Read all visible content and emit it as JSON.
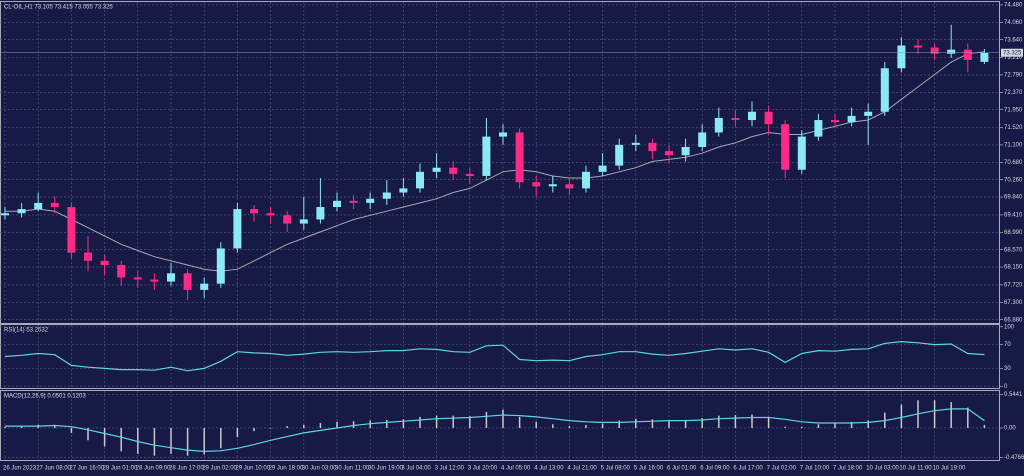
{
  "chart_data": [
    {
      "type": "candlestick",
      "title": "CL-OIL,H1 73.105 73.415 73.055 73.325",
      "categories": [
        "26 Jun 2023",
        null,
        "27 Jun 08:00",
        null,
        "27 Jun 16:00",
        null,
        "28 Jun 01:00",
        null,
        "28 Jun 09:00",
        null,
        "28 Jun 17:00",
        null,
        "29 Jun 02:00",
        null,
        "29 Jun 10:00",
        null,
        "29 Jun 18:00",
        null,
        "30 Jun 03:00",
        null,
        "30 Jun 11:00",
        null,
        "30 Jun 19:00",
        null,
        "3 Jul 04:00",
        null,
        "3 Jul 12:00",
        null,
        "3 Jul 20:00",
        null,
        "4 Jul 05:00",
        null,
        "4 Jul 13:00",
        null,
        "4 Jul 21:00",
        null,
        "5 Jul 08:00",
        null,
        "5 Jul 16:00",
        null,
        "6 Jul 01:00",
        null,
        "6 Jul 09:00",
        null,
        "6 Jul 17:00",
        null,
        "7 Jul 02:00",
        null,
        "7 Jul 10:00",
        null,
        "7 Jul 18:00",
        null,
        "10 Jul 03:00",
        null,
        "10 Jul 11:00",
        null,
        "10 Jul 19:00",
        null,
        null,
        null
      ],
      "open": [
        69.4,
        69.45,
        69.55,
        69.7,
        69.6,
        68.5,
        68.3,
        68.2,
        67.9,
        67.85,
        67.8,
        68.0,
        67.6,
        67.75,
        68.6,
        69.55,
        69.45,
        69.4,
        69.2,
        69.3,
        69.6,
        69.75,
        69.7,
        69.8,
        69.95,
        70.05,
        70.45,
        70.55,
        70.4,
        70.35,
        71.3,
        71.4,
        70.2,
        70.1,
        70.15,
        70.05,
        70.45,
        70.6,
        71.1,
        71.15,
        70.95,
        70.85,
        71.05,
        71.4,
        71.75,
        71.7,
        71.9,
        71.6,
        70.5,
        71.3,
        71.7,
        71.65,
        71.8,
        71.9,
        72.95,
        73.5,
        73.45,
        73.3,
        73.4,
        73.105
      ],
      "high": [
        69.6,
        69.7,
        69.95,
        69.85,
        69.7,
        68.9,
        68.45,
        68.3,
        68.05,
        68.0,
        68.25,
        68.1,
        67.9,
        68.75,
        69.7,
        69.65,
        69.6,
        69.5,
        69.85,
        70.3,
        69.95,
        69.9,
        69.95,
        70.25,
        70.3,
        70.65,
        70.9,
        70.7,
        70.55,
        71.75,
        71.6,
        71.5,
        70.35,
        70.35,
        70.3,
        70.6,
        70.9,
        71.25,
        71.35,
        71.25,
        71.1,
        71.25,
        71.6,
        72.0,
        71.95,
        72.15,
        72.05,
        71.7,
        71.45,
        71.85,
        71.85,
        72.0,
        72.1,
        73.1,
        73.7,
        73.65,
        73.55,
        74.0,
        73.55,
        73.415
      ],
      "low": [
        69.3,
        69.35,
        69.5,
        69.45,
        68.35,
        68.05,
        67.95,
        67.7,
        67.65,
        67.6,
        67.7,
        67.35,
        67.4,
        67.65,
        68.5,
        69.25,
        69.2,
        69.0,
        69.05,
        69.2,
        69.5,
        69.55,
        69.55,
        69.65,
        69.85,
        69.95,
        70.3,
        70.25,
        70.15,
        70.25,
        71.1,
        70.05,
        69.85,
        69.95,
        69.9,
        69.95,
        70.35,
        70.5,
        70.95,
        70.75,
        70.65,
        70.7,
        70.95,
        71.3,
        71.55,
        71.55,
        71.35,
        70.3,
        70.4,
        71.2,
        71.5,
        71.55,
        71.1,
        71.8,
        72.85,
        73.3,
        73.15,
        73.2,
        72.85,
        73.055
      ],
      "close": [
        69.45,
        69.55,
        69.7,
        69.6,
        68.5,
        68.3,
        68.2,
        67.9,
        67.85,
        67.8,
        68.0,
        67.6,
        67.75,
        68.6,
        69.55,
        69.45,
        69.4,
        69.2,
        69.3,
        69.6,
        69.75,
        69.7,
        69.8,
        69.95,
        70.05,
        70.45,
        70.55,
        70.4,
        70.35,
        71.3,
        71.4,
        70.2,
        70.1,
        70.15,
        70.05,
        70.45,
        70.6,
        71.1,
        71.15,
        70.95,
        70.85,
        71.05,
        71.4,
        71.75,
        71.7,
        71.9,
        71.6,
        70.5,
        71.3,
        71.7,
        71.65,
        71.8,
        71.9,
        72.95,
        73.5,
        73.45,
        73.3,
        73.4,
        73.15,
        73.325
      ],
      "ma_values": [
        69.5,
        69.5,
        69.55,
        69.5,
        69.3,
        69.1,
        68.9,
        68.7,
        68.55,
        68.4,
        68.3,
        68.2,
        68.1,
        68.05,
        68.1,
        68.3,
        68.5,
        68.7,
        68.85,
        69.0,
        69.15,
        69.3,
        69.4,
        69.5,
        69.6,
        69.7,
        69.8,
        69.95,
        70.05,
        70.25,
        70.45,
        70.5,
        70.45,
        70.35,
        70.3,
        70.3,
        70.35,
        70.45,
        70.55,
        70.7,
        70.75,
        70.8,
        70.9,
        71.05,
        71.15,
        71.3,
        71.4,
        71.35,
        71.35,
        71.45,
        71.55,
        71.65,
        71.7,
        71.9,
        72.2,
        72.5,
        72.8,
        73.1,
        73.3,
        73.35
      ],
      "up_color": "#8be9f5",
      "down_color": "#ff2a85",
      "ma_color": "#a9a9b3",
      "ylim": [
        66.8,
        74.55
      ],
      "yticks": [
        {
          "value": 74.48,
          "label": "74.480"
        },
        {
          "value": 74.06,
          "label": "74.060"
        },
        {
          "value": 73.64,
          "label": "73.640"
        },
        {
          "value": 73.21,
          "label": "73.210"
        },
        {
          "value": 72.79,
          "label": "72.790"
        },
        {
          "value": 72.37,
          "label": "72.370"
        },
        {
          "value": 71.95,
          "label": "71.950"
        },
        {
          "value": 71.52,
          "label": "71.520"
        },
        {
          "value": 71.1,
          "label": "71.100"
        },
        {
          "value": 70.68,
          "label": "70.680"
        },
        {
          "value": 70.26,
          "label": "70.260"
        },
        {
          "value": 69.84,
          "label": "69.840"
        },
        {
          "value": 69.41,
          "label": "69.410"
        },
        {
          "value": 68.99,
          "label": "68.990"
        },
        {
          "value": 68.57,
          "label": "68.570"
        },
        {
          "value": 68.15,
          "label": "68.150"
        },
        {
          "value": 67.72,
          "label": "67.720"
        },
        {
          "value": 67.3,
          "label": "67.300"
        },
        {
          "value": 66.88,
          "label": "66.880"
        }
      ],
      "grid": true
    },
    {
      "type": "line",
      "title": "RSI(14) 53.2532",
      "color": "#5fd3e6",
      "values": [
        50,
        52,
        55,
        53,
        35,
        32,
        30,
        28,
        28,
        27,
        32,
        26,
        30,
        42,
        58,
        56,
        55,
        52,
        54,
        57,
        58,
        57,
        58,
        60,
        60,
        63,
        62,
        58,
        57,
        68,
        69,
        45,
        43,
        44,
        43,
        50,
        53,
        58,
        58,
        54,
        52,
        55,
        59,
        63,
        61,
        63,
        57,
        40,
        55,
        60,
        59,
        62,
        63,
        72,
        75,
        73,
        70,
        71,
        55,
        53.2532
      ],
      "ylim": [
        -3,
        103
      ],
      "yticks": [
        100,
        70,
        30,
        0
      ],
      "grid": true
    },
    {
      "type": "macd",
      "title": "MACD(12,26,9) 0.0501 0.1203",
      "histogram_color": "#c9c9d2",
      "signal_color": "#5fd3e6",
      "histogram": [
        0.02,
        0.03,
        0.05,
        0.05,
        -0.08,
        -0.2,
        -0.3,
        -0.38,
        -0.42,
        -0.45,
        -0.42,
        -0.45,
        -0.43,
        -0.33,
        -0.15,
        -0.05,
        0.0,
        0.03,
        0.05,
        0.08,
        0.1,
        0.11,
        0.12,
        0.13,
        0.14,
        0.18,
        0.2,
        0.2,
        0.19,
        0.26,
        0.3,
        0.18,
        0.1,
        0.06,
        0.03,
        0.05,
        0.07,
        0.12,
        0.15,
        0.14,
        0.12,
        0.13,
        0.16,
        0.2,
        0.21,
        0.22,
        0.18,
        0.02,
        0.02,
        0.06,
        0.08,
        0.1,
        0.12,
        0.25,
        0.38,
        0.45,
        0.45,
        0.42,
        0.33,
        0.0501
      ],
      "signal": [
        0.03,
        0.03,
        0.03,
        0.04,
        0.02,
        -0.03,
        -0.09,
        -0.15,
        -0.22,
        -0.28,
        -0.32,
        -0.36,
        -0.38,
        -0.37,
        -0.33,
        -0.27,
        -0.2,
        -0.14,
        -0.08,
        -0.04,
        0.0,
        0.04,
        0.07,
        0.09,
        0.11,
        0.13,
        0.15,
        0.16,
        0.17,
        0.19,
        0.21,
        0.2,
        0.18,
        0.15,
        0.12,
        0.1,
        0.09,
        0.09,
        0.1,
        0.11,
        0.12,
        0.12,
        0.13,
        0.15,
        0.16,
        0.17,
        0.17,
        0.14,
        0.1,
        0.08,
        0.08,
        0.08,
        0.09,
        0.12,
        0.17,
        0.23,
        0.28,
        0.31,
        0.31,
        0.1203
      ],
      "ylim": [
        -0.52,
        0.6
      ],
      "yticks": [
        0.5441,
        {
          "value": 0,
          "label": "0.00"
        },
        -0.4766
      ],
      "grid": true
    }
  ]
}
